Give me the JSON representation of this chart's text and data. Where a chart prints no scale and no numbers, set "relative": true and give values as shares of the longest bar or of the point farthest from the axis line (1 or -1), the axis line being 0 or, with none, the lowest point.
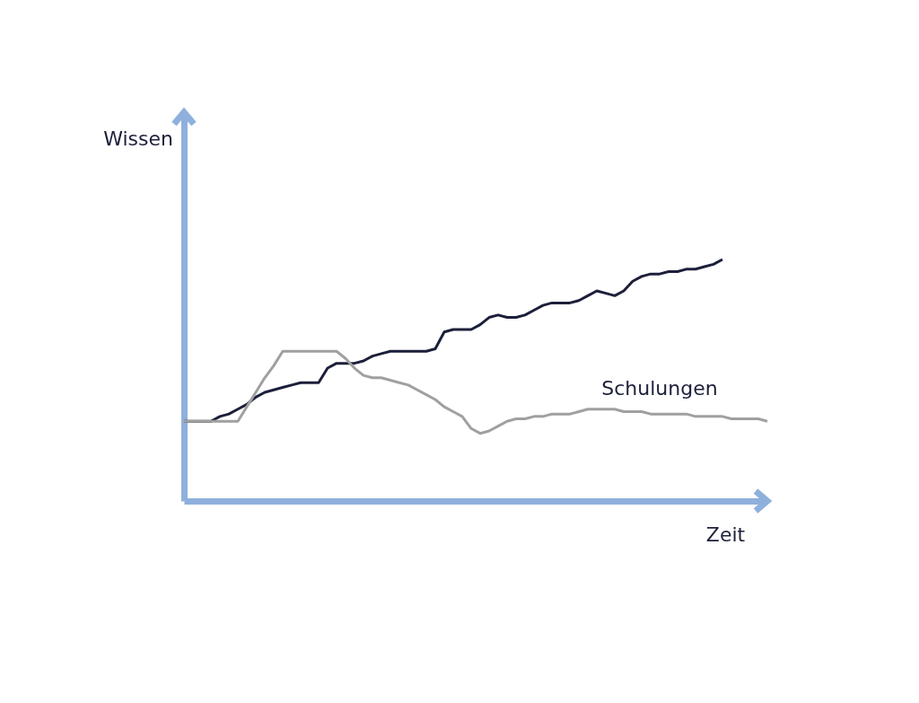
{
  "chart_data": {
    "type": "line",
    "relative": true,
    "xlabel": "Zeit",
    "annotations": [
      "Wissen"
    ],
    "legend": false,
    "categories": [
      null,
      null,
      null,
      null,
      null,
      null,
      null,
      null,
      null,
      null,
      null,
      null,
      null,
      null,
      null,
      null,
      null,
      null,
      null,
      null,
      null,
      null,
      null,
      null,
      null,
      null,
      null,
      null,
      null,
      null,
      null,
      null,
      null,
      null,
      null,
      null,
      null,
      null,
      null,
      null,
      null,
      null,
      null,
      null,
      null,
      null,
      null,
      null,
      null,
      null,
      null,
      null,
      null,
      null,
      null,
      null,
      null,
      null,
      null,
      null,
      null,
      null,
      null,
      null,
      null,
      null
    ],
    "series": [
      {
        "color": "#1c1f3a",
        "values": [
          0.33,
          0.33,
          0.33,
          0.33,
          0.35,
          0.36,
          0.38,
          0.4,
          0.43,
          0.45,
          0.46,
          0.47,
          0.48,
          0.49,
          0.49,
          0.49,
          0.55,
          0.57,
          0.57,
          0.57,
          0.58,
          0.6,
          0.61,
          0.62,
          0.62,
          0.62,
          0.62,
          0.62,
          0.63,
          0.7,
          0.71,
          0.71,
          0.71,
          0.73,
          0.76,
          0.77,
          0.76,
          0.76,
          0.77,
          0.79,
          0.81,
          0.82,
          0.82,
          0.82,
          0.83,
          0.85,
          0.87,
          0.86,
          0.85,
          0.87,
          0.91,
          0.93,
          0.94,
          0.94,
          0.95,
          0.95,
          0.96,
          0.96,
          0.97,
          0.98,
          1,
          null,
          null,
          null,
          null,
          null
        ]
      },
      {
        "name": "Schulungen",
        "color": "#a0a0a0",
        "values": [
          0.33,
          0.33,
          0.33,
          0.33,
          0.33,
          0.33,
          0.33,
          0.39,
          0.45,
          0.51,
          0.56,
          0.62,
          0.62,
          0.62,
          0.62,
          0.62,
          0.62,
          0.62,
          0.59,
          0.55,
          0.52,
          0.51,
          0.51,
          0.5,
          0.49,
          0.48,
          0.46,
          0.44,
          0.42,
          0.39,
          0.37,
          0.35,
          0.3,
          0.28,
          0.29,
          0.31,
          0.33,
          0.34,
          0.34,
          0.35,
          0.35,
          0.36,
          0.36,
          0.36,
          0.37,
          0.38,
          0.38,
          0.38,
          0.38,
          0.37,
          0.37,
          0.37,
          0.36,
          0.36,
          0.36,
          0.36,
          0.36,
          0.35,
          0.35,
          0.35,
          0.35,
          0.34,
          0.34,
          0.34,
          0.34,
          0.33
        ]
      }
    ]
  }
}
